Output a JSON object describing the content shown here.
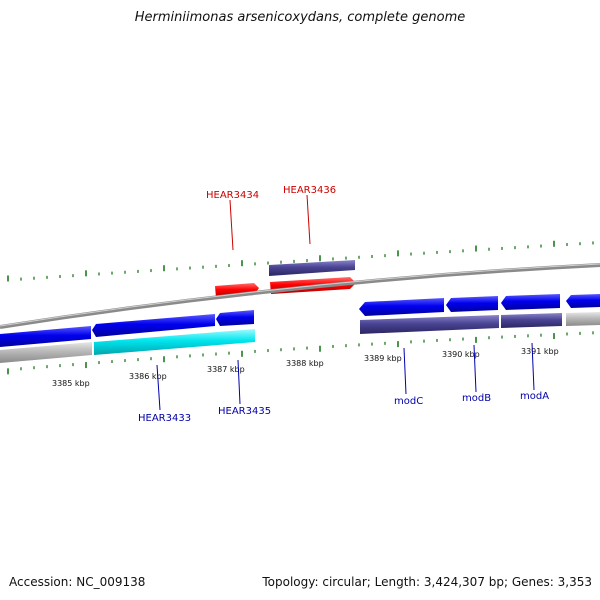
{
  "title": "Herminiimonas arsenicoxydans, complete genome",
  "footer": {
    "accession": "Accession: NC_009138",
    "summary": "Topology: circular; Length: 3,424,307 bp; Genes: 3,353"
  },
  "colors": {
    "forward_cds": "#0000ee",
    "reverse_cds": "#4a4494",
    "highlight_forward": "#ff0000",
    "highlight_reverse": "#00e5ee",
    "other_feature": "#b8b8b8",
    "backbone": "#8a8a8a",
    "tick": "#1f7a1f",
    "label_forward": "#cc0000",
    "label_reverse": "#0000aa"
  },
  "scale": {
    "unit": "kbp",
    "labels": [
      "3385 kbp",
      "3386 kbp",
      "3387 kbp",
      "3388 kbp",
      "3389 kbp",
      "3390 kbp",
      "3391 kbp"
    ]
  },
  "gene_labels": [
    {
      "id": "lbl-hear3434",
      "text": "HEAR3434",
      "strand": "forward"
    },
    {
      "id": "lbl-hear3436",
      "text": "HEAR3436",
      "strand": "forward"
    },
    {
      "id": "lbl-hear3433",
      "text": "HEAR3433",
      "strand": "reverse"
    },
    {
      "id": "lbl-hear3435",
      "text": "HEAR3435",
      "strand": "reverse"
    },
    {
      "id": "lbl-modc",
      "text": "modC",
      "strand": "reverse"
    },
    {
      "id": "lbl-modb",
      "text": "modB",
      "strand": "reverse"
    },
    {
      "id": "lbl-moda",
      "text": "modA",
      "strand": "reverse"
    }
  ]
}
